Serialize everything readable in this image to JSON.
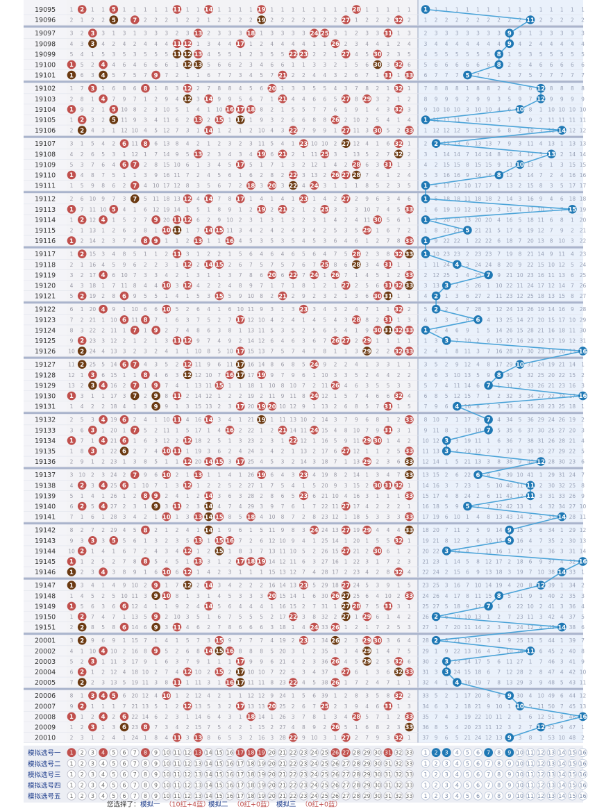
{
  "issues": [
    "19095",
    "19096",
    "19097",
    "19098",
    "19099",
    "19100",
    "19101",
    "19102",
    "19103",
    "19104",
    "19105",
    "19106",
    "19107",
    "19108",
    "19109",
    "19110",
    "19111",
    "19112",
    "19113",
    "19114",
    "19115",
    "19116",
    "19117",
    "19118",
    "19119",
    "19120",
    "19121",
    "19122",
    "19123",
    "19124",
    "19125",
    "19126",
    "19127",
    "19128",
    "19129",
    "19130",
    "19131",
    "19132",
    "19133",
    "19134",
    "19135",
    "19136",
    "19137",
    "19138",
    "19139",
    "19140",
    "19141",
    "19142",
    "19143",
    "19144",
    "19145",
    "19146",
    "19147",
    "19148",
    "19149",
    "19150",
    "19151",
    "20001",
    "20002",
    "20003",
    "20004",
    "20005",
    "20006",
    "20007",
    "20008",
    "20009",
    "20010"
  ],
  "red_draws": [
    [
      2,
      5,
      11,
      14,
      19,
      28
    ],
    [
      5,
      7,
      19,
      27,
      32
    ],
    [
      3,
      13,
      18,
      24,
      25,
      31
    ],
    [
      3,
      11,
      12,
      17,
      26
    ],
    [
      11,
      12,
      13,
      22,
      23,
      27,
      30
    ],
    [
      1,
      4,
      12,
      13,
      30,
      32
    ],
    [
      1,
      4,
      9,
      21,
      31,
      33
    ],
    [
      3,
      8,
      12,
      20,
      32
    ],
    [
      4,
      12,
      14,
      21,
      27,
      29
    ],
    [
      1,
      5,
      16,
      17,
      18,
      32
    ],
    [
      2,
      5,
      13,
      15,
      17,
      26
    ],
    [
      2,
      14,
      22,
      27,
      30,
      33
    ],
    [
      6,
      8,
      23,
      27,
      32
    ],
    [
      13,
      19,
      21,
      25,
      32
    ],
    [
      6,
      7,
      17,
      28,
      31
    ],
    [
      1,
      22,
      26,
      27,
      28
    ],
    [
      7,
      18,
      20,
      22,
      24
    ],
    [
      7,
      12,
      14,
      17,
      23,
      27
    ],
    [
      1,
      5,
      19,
      21,
      25,
      33
    ],
    [
      2,
      4,
      9,
      11,
      12,
      30
    ],
    [
      10,
      11,
      14,
      15,
      29
    ],
    [
      1,
      8,
      9,
      13,
      16,
      33
    ],
    [
      2,
      11,
      28,
      32,
      33
    ],
    [
      12,
      14,
      15,
      25,
      28,
      31
    ],
    [
      4,
      20,
      22,
      24,
      26,
      33
    ],
    [
      10,
      12,
      27,
      31,
      32,
      33
    ],
    [
      2,
      6,
      15,
      21,
      30,
      31
    ],
    [
      4,
      10,
      23,
      32
    ],
    [
      6,
      8,
      17,
      28,
      31
    ],
    [
      7,
      9,
      30,
      31,
      32,
      33
    ],
    [
      2,
      11,
      12,
      26,
      27,
      29
    ],
    [
      2,
      17,
      29,
      32,
      33
    ],
    [
      2,
      6,
      7,
      12,
      17,
      24
    ],
    [
      3,
      8,
      12,
      16,
      17,
      19
    ],
    [
      3,
      4,
      7,
      9,
      15,
      26
    ],
    [
      1,
      7,
      9,
      11,
      24,
      32
    ],
    [
      9,
      17,
      19,
      20,
      31
    ],
    [
      4,
      6,
      11,
      14,
      19,
      33
    ],
    [
      3,
      7,
      16,
      21,
      24,
      31
    ],
    [
      1,
      4,
      6,
      12,
      22,
      29,
      30
    ],
    [
      3,
      6,
      10,
      11,
      27,
      33
    ],
    [
      12,
      14,
      15,
      17,
      29,
      33
    ],
    [
      7,
      10,
      13,
      19,
      23,
      33
    ],
    [
      2,
      4,
      6,
      12,
      30,
      31,
      32
    ],
    [
      8,
      9,
      14,
      23,
      33
    ],
    [
      2,
      4,
      9,
      11,
      14,
      27
    ],
    [
      10,
      13,
      14,
      15,
      18,
      33
    ],
    [
      8,
      14,
      24,
      27,
      29,
      33
    ],
    [
      3,
      5,
      13,
      15,
      16,
      32
    ],
    [
      2,
      12,
      15,
      27,
      30
    ],
    [
      1,
      8,
      13,
      17,
      18,
      19
    ],
    [
      1,
      4,
      10,
      12,
      32
    ],
    [
      1,
      9,
      12,
      14,
      23,
      27
    ],
    [
      9,
      10,
      20,
      26,
      27,
      33
    ],
    [
      1,
      6,
      14,
      27,
      28,
      31
    ],
    [
      2,
      9,
      22,
      27,
      29
    ],
    [
      2,
      6,
      9,
      11,
      24,
      26
    ],
    [
      2,
      15,
      23,
      26,
      29,
      30
    ],
    [
      4,
      9,
      14,
      15,
      16,
      29
    ],
    [
      3,
      17,
      26,
      29,
      32
    ],
    [
      2,
      12,
      15,
      17,
      27,
      32,
      33
    ],
    [
      2,
      11,
      16,
      17,
      22,
      26
    ],
    [
      3,
      4,
      5,
      10,
      32
    ],
    [
      2,
      12,
      17,
      20,
      25,
      31
    ],
    [
      1,
      4,
      6,
      18,
      28,
      33
    ],
    [
      3,
      6,
      8,
      26,
      33
    ],
    [
      11,
      13,
      22,
      27,
      32
    ]
  ],
  "blue_draws": [
    1,
    11,
    9,
    9,
    8,
    8,
    5,
    12,
    12,
    10,
    1,
    14,
    2,
    13,
    10,
    8,
    1,
    1,
    15,
    1,
    5,
    1,
    1,
    4,
    7,
    3,
    2,
    2,
    6,
    1,
    3,
    16,
    10,
    8,
    7,
    16,
    4,
    7,
    7,
    3,
    3,
    12,
    6,
    11,
    11,
    5,
    14,
    9,
    9,
    3,
    16,
    14,
    12,
    8,
    7,
    2,
    14,
    2,
    11,
    3,
    3,
    4,
    9,
    10,
    16,
    12,
    9
  ],
  "sim_rows": [
    {
      "label": "模拟选号一",
      "red": [
        1,
        4,
        8,
        13,
        17,
        18,
        19,
        26,
        27,
        31
      ],
      "blue": [
        2,
        3,
        7,
        9
      ]
    },
    {
      "label": "模拟选号二",
      "red": [],
      "blue": []
    },
    {
      "label": "模拟选号三",
      "red": [],
      "blue": []
    },
    {
      "label": "模拟选号四",
      "red": [],
      "blue": []
    },
    {
      "label": "模拟选号五",
      "red": [],
      "blue": []
    }
  ],
  "footer": {
    "prefix": "您选择了：",
    "items": [
      {
        "name": "模拟一",
        "note": "（10红+4蓝）"
      },
      {
        "name": "模拟二",
        "note": "（0红+0蓝）"
      },
      {
        "name": "模拟三",
        "note": "（0红+0蓝）"
      }
    ]
  },
  "colors": {
    "red": "#c0504d",
    "blue": "#1f78b4",
    "brown": "#6b3a12",
    "line": "#4aa3d8",
    "bg_red": "#f3f3f6",
    "bg_blue": "#eaf1fb",
    "sep": "#aab4cc"
  }
}
